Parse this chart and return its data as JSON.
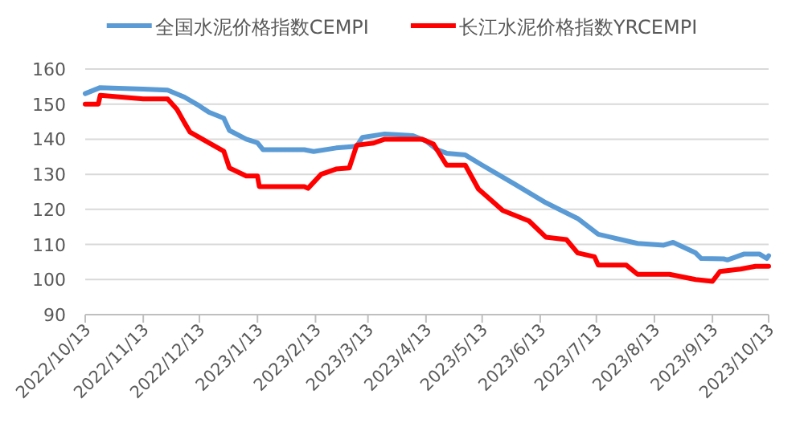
{
  "chart_data": {
    "type": "line",
    "legend": "top",
    "grid": "y",
    "line_style": "solid",
    "marker": "none",
    "xlim": [
      "2022-10-13",
      "2023-10-13"
    ],
    "xticks": [
      {
        "value": "2022-10-13",
        "label": "2022/10/13"
      },
      {
        "value": "2022-11-13",
        "label": "2022/11/13"
      },
      {
        "value": "2022-12-13",
        "label": "2022/12/13"
      },
      {
        "value": "2023-01-13",
        "label": "2023/1/13"
      },
      {
        "value": "2023-02-13",
        "label": "2023/2/13"
      },
      {
        "value": "2023-03-13",
        "label": "2023/3/13"
      },
      {
        "value": "2023-04-13",
        "label": "2023/4/13"
      },
      {
        "value": "2023-05-13",
        "label": "2023/5/13"
      },
      {
        "value": "2023-06-13",
        "label": "2023/6/13"
      },
      {
        "value": "2023-07-13",
        "label": "2023/7/13"
      },
      {
        "value": "2023-08-13",
        "label": "2023/8/13"
      },
      {
        "value": "2023-09-13",
        "label": "2023/9/13"
      },
      {
        "value": "2023-10-13",
        "label": "2023/10/13"
      }
    ],
    "ylim": [
      90,
      160
    ],
    "yticks": [
      90,
      100,
      110,
      120,
      130,
      140,
      150,
      160
    ],
    "series": [
      {
        "name": "全国水泥价格指数CEMPI",
        "color": "#5b9bd5",
        "x": [
          "2022-10-13",
          "2022-10-21",
          "2022-11-13",
          "2022-11-26",
          "2022-12-05",
          "2022-12-13",
          "2022-12-18",
          "2022-12-26",
          "2022-12-29",
          "2023-01-07",
          "2023-01-13",
          "2023-01-16",
          "2023-02-07",
          "2023-02-12",
          "2023-02-24",
          "2023-03-07",
          "2023-03-10",
          "2023-03-22",
          "2023-04-06",
          "2023-04-13",
          "2023-04-19",
          "2023-04-24",
          "2023-05-04",
          "2023-05-13",
          "2023-05-30",
          "2023-06-16",
          "2023-07-03",
          "2023-07-14",
          "2023-08-04",
          "2023-08-18",
          "2023-08-23",
          "2023-09-04",
          "2023-09-07",
          "2023-09-19",
          "2023-09-21",
          "2023-09-30",
          "2023-10-08",
          "2023-10-12",
          "2023-10-13"
        ],
        "values": [
          153,
          154.7,
          154.3,
          154,
          152,
          149.5,
          147.7,
          146,
          142.5,
          140,
          139,
          137,
          137,
          136.5,
          137.5,
          138,
          140.5,
          141.5,
          141,
          139.5,
          137,
          136,
          135.5,
          132.6,
          127.3,
          121.9,
          117.4,
          112.9,
          110.3,
          109.8,
          110.6,
          107.6,
          106,
          105.9,
          105.6,
          107.3,
          107.3,
          106,
          106.8
        ]
      },
      {
        "name": "长江水泥价格指数YRCEMPI",
        "color": "#ff0000",
        "x": [
          "2022-10-13",
          "2022-10-20",
          "2022-10-21",
          "2022-11-13",
          "2022-11-26",
          "2022-12-01",
          "2022-12-05",
          "2022-12-08",
          "2022-12-18",
          "2022-12-26",
          "2022-12-29",
          "2023-01-07",
          "2023-01-13",
          "2023-01-14",
          "2023-02-07",
          "2023-02-09",
          "2023-02-16",
          "2023-02-24",
          "2023-03-03",
          "2023-03-07",
          "2023-03-16",
          "2023-03-22",
          "2023-04-11",
          "2023-04-17",
          "2023-04-24",
          "2023-05-04",
          "2023-05-11",
          "2023-05-24",
          "2023-06-07",
          "2023-06-16",
          "2023-06-27",
          "2023-07-03",
          "2023-07-12",
          "2023-07-14",
          "2023-07-29",
          "2023-08-04",
          "2023-08-21",
          "2023-09-04",
          "2023-09-13",
          "2023-09-17",
          "2023-09-28",
          "2023-10-06",
          "2023-10-13"
        ],
        "values": [
          150,
          150,
          152.5,
          151.5,
          151.5,
          148.5,
          144.7,
          142,
          139,
          136.6,
          131.8,
          129.5,
          129.5,
          126.5,
          126.5,
          126,
          130,
          131.5,
          131.8,
          138.3,
          138.9,
          140,
          140,
          138.6,
          132.6,
          132.6,
          125.8,
          119.7,
          116.7,
          112.1,
          111.4,
          107.6,
          106.5,
          104.1,
          104.1,
          101.5,
          101.5,
          100,
          99.5,
          102.3,
          103,
          103.8,
          103.8
        ]
      }
    ]
  }
}
